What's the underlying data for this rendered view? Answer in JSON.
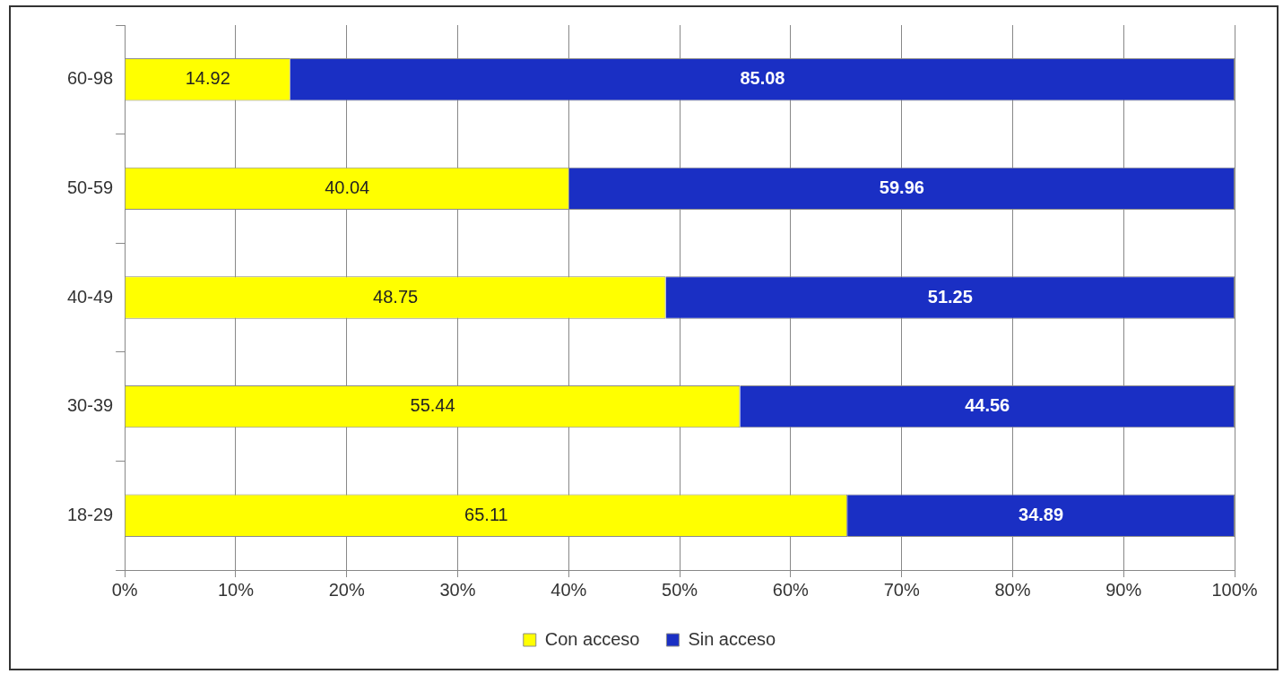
{
  "chart_data": {
    "type": "bar",
    "orientation": "horizontal",
    "stacked": true,
    "categories": [
      "60-98",
      "50-59",
      "40-49",
      "30-39",
      "18-29"
    ],
    "series": [
      {
        "name": "Con acceso",
        "color": "#ffff00",
        "values": [
          14.92,
          40.04,
          48.75,
          55.44,
          65.11
        ]
      },
      {
        "name": "Sin acceso",
        "color": "#1a2fc4",
        "values": [
          85.08,
          59.96,
          51.25,
          44.56,
          34.89
        ]
      }
    ],
    "xlim": [
      0,
      100
    ],
    "xticks": [
      {
        "value": 0,
        "label": "0%"
      },
      {
        "value": 10,
        "label": "10%"
      },
      {
        "value": 20,
        "label": "20%"
      },
      {
        "value": 30,
        "label": "30%"
      },
      {
        "value": 40,
        "label": "40%"
      },
      {
        "value": 50,
        "label": "50%"
      },
      {
        "value": 60,
        "label": "60%"
      },
      {
        "value": 70,
        "label": "70%"
      },
      {
        "value": 80,
        "label": "80%"
      },
      {
        "value": 90,
        "label": "90%"
      },
      {
        "value": 100,
        "label": "100%"
      }
    ],
    "grid": "x",
    "legend": "bottom",
    "data_labels": true
  }
}
